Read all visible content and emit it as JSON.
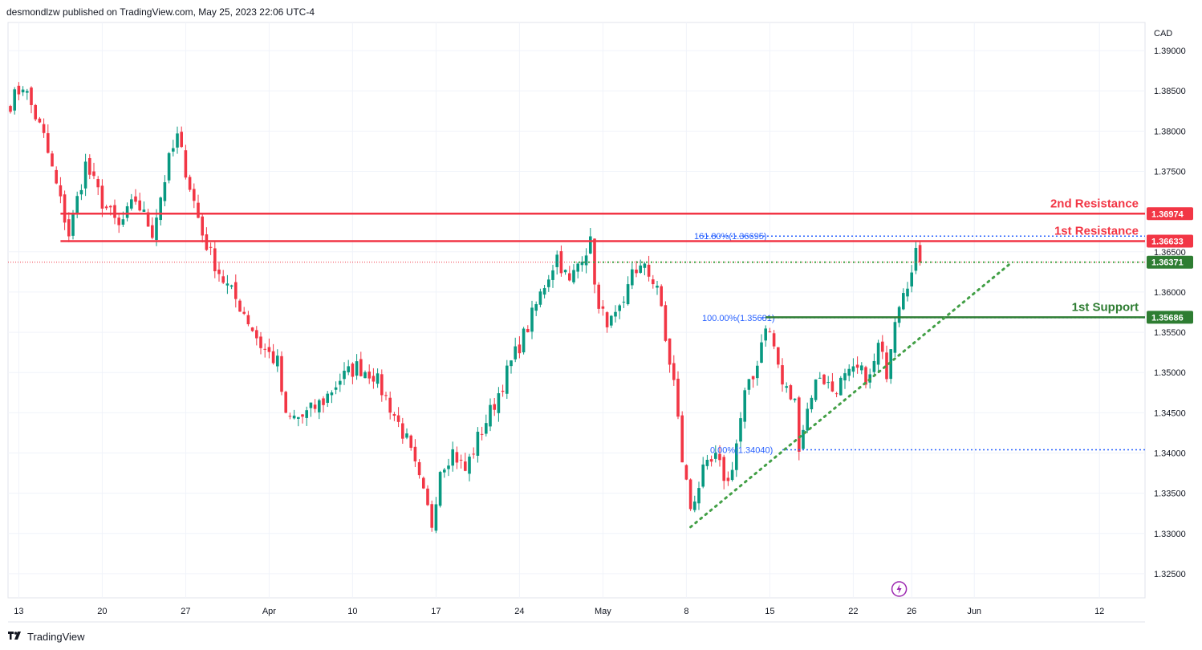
{
  "header": {
    "publish_text": "desmondlzw published on TradingView.com, May 25, 2023 22:06 UTC-4"
  },
  "footer": {
    "brand": "TradingView"
  },
  "colors": {
    "resistance": "#f23645",
    "support": "#2e7d32",
    "fib": "#2962ff",
    "bull": "#089981",
    "bear": "#f23645",
    "trendline": "#43a047",
    "flash": "#9c27b0"
  },
  "chart_data": {
    "type": "candlestick",
    "currency_label": "CAD",
    "ylim": [
      1.322,
      1.3935
    ],
    "y_ticks": [
      "1.39000",
      "1.38500",
      "1.38000",
      "1.37500",
      "1.36500",
      "1.36000",
      "1.35500",
      "1.35000",
      "1.34500",
      "1.34000",
      "1.33500",
      "1.33000",
      "1.32500"
    ],
    "x_ticks": [
      {
        "label": "13",
        "bar": 2
      },
      {
        "label": "20",
        "bar": 22
      },
      {
        "label": "27",
        "bar": 42
      },
      {
        "label": "Apr",
        "bar": 62
      },
      {
        "label": "10",
        "bar": 82
      },
      {
        "label": "17",
        "bar": 102
      },
      {
        "label": "24",
        "bar": 122
      },
      {
        "label": "May",
        "bar": 142
      },
      {
        "label": "8",
        "bar": 162
      },
      {
        "label": "15",
        "bar": 182
      },
      {
        "label": "22",
        "bar": 202
      },
      {
        "label": "26",
        "bar": 216
      },
      {
        "label": "Jun",
        "bar": 231
      },
      {
        "label": "12",
        "bar": 261
      }
    ],
    "levels": [
      {
        "name": "2nd Resistance",
        "price": 1.36974,
        "label": "1.36974",
        "kind": "resistance",
        "from_bar": 12
      },
      {
        "name": "1st Resistance",
        "price": 1.36633,
        "label": "1.36633",
        "kind": "resistance",
        "from_bar": 12
      },
      {
        "name": "1st Support",
        "price": 1.35686,
        "label": "1.35686",
        "kind": "support",
        "from_bar": 181
      }
    ],
    "annotations": {
      "second_resistance": "2nd Resistance",
      "first_resistance": "1st Resistance",
      "first_support": "1st Support"
    },
    "last_price": {
      "price": 1.36371,
      "label": "1.36371"
    },
    "fibonacci": [
      {
        "label": "161.80%(1.36695)",
        "price": 1.36695
      },
      {
        "label": "100.00%(1.35681)",
        "price": 1.35681
      },
      {
        "label": "0.00%(1.34040)",
        "price": 1.3404
      }
    ],
    "trendline": {
      "from": {
        "bar": 163,
        "price": 1.3308
      },
      "to": {
        "bar": 240,
        "price": 1.3637
      }
    },
    "anchors": [
      [
        0,
        1.3835
      ],
      [
        3,
        1.3858
      ],
      [
        8,
        1.3792
      ],
      [
        14,
        1.3672
      ],
      [
        18,
        1.3758
      ],
      [
        22,
        1.3712
      ],
      [
        26,
        1.368
      ],
      [
        30,
        1.3715
      ],
      [
        34,
        1.3675
      ],
      [
        38,
        1.3763
      ],
      [
        40,
        1.3792
      ],
      [
        44,
        1.3712
      ],
      [
        46,
        1.3672
      ],
      [
        48,
        1.3646
      ],
      [
        51,
        1.3615
      ],
      [
        56,
        1.3575
      ],
      [
        60,
        1.3534
      ],
      [
        64,
        1.3512
      ],
      [
        66,
        1.3442
      ],
      [
        70,
        1.3445
      ],
      [
        75,
        1.3465
      ],
      [
        79,
        1.3492
      ],
      [
        83,
        1.3507
      ],
      [
        87,
        1.3498
      ],
      [
        91,
        1.3458
      ],
      [
        95,
        1.3415
      ],
      [
        99,
        1.3347
      ],
      [
        101,
        1.3312
      ],
      [
        103,
        1.3382
      ],
      [
        106,
        1.3402
      ],
      [
        109,
        1.3378
      ],
      [
        112,
        1.3418
      ],
      [
        116,
        1.3462
      ],
      [
        120,
        1.3512
      ],
      [
        124,
        1.3557
      ],
      [
        128,
        1.361
      ],
      [
        131,
        1.3645
      ],
      [
        134,
        1.361
      ],
      [
        137,
        1.3648
      ],
      [
        139,
        1.366
      ],
      [
        141,
        1.3575
      ],
      [
        144,
        1.3562
      ],
      [
        147,
        1.3578
      ],
      [
        149,
        1.363
      ],
      [
        152,
        1.3627
      ],
      [
        155,
        1.361
      ],
      [
        157,
        1.3538
      ],
      [
        159,
        1.3488
      ],
      [
        161,
        1.3392
      ],
      [
        163,
        1.3332
      ],
      [
        166,
        1.3375
      ],
      [
        169,
        1.3392
      ],
      [
        172,
        1.3362
      ],
      [
        174,
        1.3412
      ],
      [
        176,
        1.3472
      ],
      [
        178,
        1.3492
      ],
      [
        181,
        1.3562
      ],
      [
        183,
        1.3532
      ],
      [
        185,
        1.3485
      ],
      [
        188,
        1.3462
      ],
      [
        189,
        1.3412
      ],
      [
        192,
        1.3475
      ],
      [
        194,
        1.3498
      ],
      [
        197,
        1.3478
      ],
      [
        200,
        1.3492
      ],
      [
        203,
        1.3502
      ],
      [
        206,
        1.3492
      ],
      [
        208,
        1.3532
      ],
      [
        210,
        1.3502
      ],
      [
        212,
        1.3572
      ],
      [
        214,
        1.3608
      ],
      [
        216,
        1.3622
      ],
      [
        217,
        1.3645
      ],
      [
        218,
        1.3637
      ]
    ]
  }
}
